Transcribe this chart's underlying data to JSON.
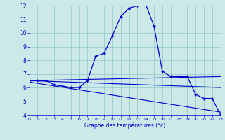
{
  "title": "Graphe des températures (°c)",
  "bg_color": "#cce8e8",
  "grid_color": "#99cccc",
  "line_color": "#0000cc",
  "x_min": 0,
  "x_max": 23,
  "y_min": 4,
  "y_max": 12,
  "main_curve_x": [
    0,
    1,
    2,
    3,
    4,
    5,
    6,
    7,
    8,
    9,
    10,
    11,
    12,
    13,
    14,
    15,
    16,
    17,
    18,
    19,
    20,
    21,
    22,
    23
  ],
  "main_curve_y": [
    6.5,
    6.5,
    6.5,
    6.2,
    6.1,
    6.0,
    6.0,
    6.5,
    8.3,
    8.5,
    9.8,
    11.2,
    11.8,
    12.0,
    12.1,
    10.5,
    7.2,
    6.8,
    6.8,
    6.8,
    5.5,
    5.2,
    5.2,
    4.0
  ],
  "line1_x": [
    0,
    23
  ],
  "line1_y": [
    6.5,
    6.8
  ],
  "line2_x": [
    0,
    23
  ],
  "line2_y": [
    6.5,
    6.0
  ],
  "line3_x": [
    0,
    23
  ],
  "line3_y": [
    6.4,
    4.2
  ]
}
